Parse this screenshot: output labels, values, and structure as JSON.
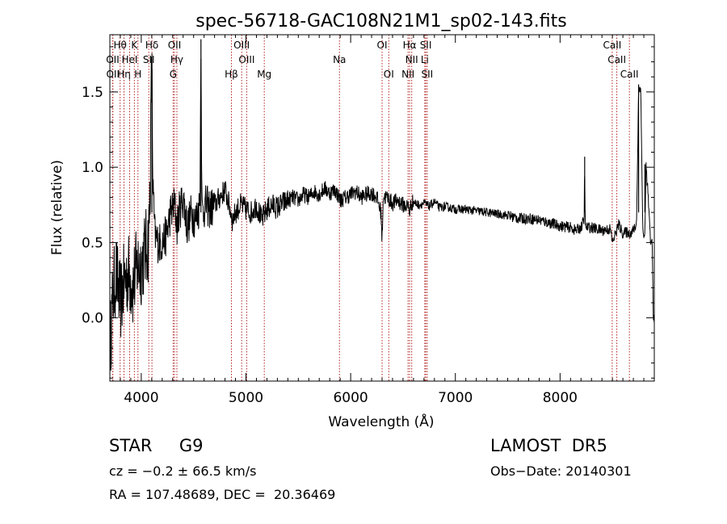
{
  "chart_data": {
    "type": "line",
    "title": "spec-56718-GAC108N21M1_sp02-143.fits",
    "xlabel": "Wavelength (Å)",
    "ylabel": "Flux (relative)",
    "xlim": [
      3700,
      8900
    ],
    "ylim": [
      -0.42,
      1.88
    ],
    "xticks": [
      4000,
      5000,
      6000,
      7000,
      8000
    ],
    "xtick_labels": [
      "4000",
      "5000",
      "6000",
      "7000",
      "8000"
    ],
    "yticks": [
      0.0,
      0.5,
      1.0,
      1.5
    ],
    "ytick_labels": [
      "0.0",
      "0.5",
      "1.0",
      "1.5"
    ],
    "series": [
      {
        "color": "#000000",
        "x": [
          3700,
          3730,
          3760,
          3800,
          3840,
          3880,
          3920,
          3960,
          4000,
          4040,
          4070,
          4085,
          4095,
          4102,
          4110,
          4130,
          4160,
          4200,
          4240,
          4280,
          4320,
          4340,
          4360,
          4400,
          4440,
          4480,
          4520,
          4560,
          4570,
          4580,
          4620,
          4660,
          4700,
          4750,
          4800,
          4850,
          4870,
          4900,
          4950,
          5000,
          5050,
          5100,
          5150,
          5200,
          5250,
          5300,
          5350,
          5400,
          5450,
          5500,
          5550,
          5600,
          5650,
          5700,
          5750,
          5800,
          5850,
          5890,
          5900,
          5950,
          6000,
          6050,
          6100,
          6150,
          6200,
          6250,
          6290,
          6300,
          6310,
          6350,
          6400,
          6450,
          6500,
          6550,
          6563,
          6580,
          6600,
          6650,
          6700,
          6750,
          6800,
          6850,
          6900,
          6950,
          7000,
          7100,
          7200,
          7300,
          7400,
          7500,
          7600,
          7700,
          7800,
          7900,
          8000,
          8100,
          8150,
          8200,
          8230,
          8235,
          8240,
          8300,
          8400,
          8480,
          8500,
          8540,
          8560,
          8600,
          8640,
          8660,
          8700,
          8730,
          8750,
          8770,
          8790,
          8800,
          8810,
          8820,
          8840,
          8860,
          8870,
          8880,
          8890,
          8900
        ],
        "y": [
          -0.2,
          0.15,
          0.3,
          0.1,
          0.25,
          0.3,
          0.2,
          0.35,
          0.35,
          0.45,
          0.5,
          0.9,
          1.5,
          1.65,
          0.9,
          0.55,
          0.5,
          0.5,
          0.55,
          0.7,
          0.75,
          0.6,
          0.7,
          0.8,
          0.6,
          0.7,
          0.65,
          0.75,
          1.85,
          0.7,
          0.75,
          0.72,
          0.75,
          0.8,
          0.85,
          0.72,
          0.65,
          0.7,
          0.75,
          0.72,
          0.7,
          0.75,
          0.65,
          0.72,
          0.75,
          0.73,
          0.76,
          0.78,
          0.8,
          0.78,
          0.82,
          0.8,
          0.84,
          0.82,
          0.86,
          0.83,
          0.85,
          0.8,
          0.78,
          0.8,
          0.82,
          0.84,
          0.8,
          0.82,
          0.83,
          0.8,
          0.7,
          0.5,
          0.8,
          0.8,
          0.76,
          0.78,
          0.75,
          0.74,
          0.7,
          0.76,
          0.77,
          0.75,
          0.76,
          0.74,
          0.77,
          0.73,
          0.74,
          0.73,
          0.72,
          0.72,
          0.71,
          0.7,
          0.69,
          0.68,
          0.66,
          0.66,
          0.65,
          0.63,
          0.61,
          0.6,
          0.58,
          0.6,
          0.65,
          1.07,
          0.6,
          0.6,
          0.58,
          0.59,
          0.5,
          0.58,
          0.62,
          0.56,
          0.57,
          0.56,
          0.58,
          0.62,
          1.5,
          1.55,
          0.6,
          0.52,
          0.55,
          1.02,
          0.82,
          0.55,
          0.48,
          0.52,
          0.02,
          0.0
        ]
      }
    ],
    "lines": [
      {
        "label": "Hθ",
        "x": 3798,
        "row": 0
      },
      {
        "label": "K",
        "x": 3934,
        "row": 0
      },
      {
        "label": "Hδ",
        "x": 4102,
        "row": 0
      },
      {
        "label": "OII",
        "x": 4317,
        "row": 0
      },
      {
        "label": "OIII",
        "x": 4959,
        "row": 0
      },
      {
        "label": "OI",
        "x": 6300,
        "row": 0
      },
      {
        "label": "Hα",
        "x": 6563,
        "row": 0
      },
      {
        "label": "SII",
        "x": 6717,
        "row": 0
      },
      {
        "label": "CaII",
        "x": 8498,
        "row": 0
      },
      {
        "label": "OII",
        "x": 3727,
        "row": 1
      },
      {
        "label": "HeI",
        "x": 3889,
        "row": 1
      },
      {
        "label": "SII",
        "x": 4072,
        "row": 1
      },
      {
        "label": "Hγ",
        "x": 4340,
        "row": 1
      },
      {
        "label": "OIII",
        "x": 5007,
        "row": 1
      },
      {
        "label": "Na",
        "x": 5893,
        "row": 1
      },
      {
        "label": "NII",
        "x": 6583,
        "row": 1
      },
      {
        "label": "Li",
        "x": 6708,
        "row": 1
      },
      {
        "label": "CaII",
        "x": 8542,
        "row": 1
      },
      {
        "label": "OII",
        "x": 3729,
        "row": 2
      },
      {
        "label": "Hη",
        "x": 3835,
        "row": 2
      },
      {
        "label": "H",
        "x": 3968,
        "row": 2
      },
      {
        "label": "G",
        "x": 4305,
        "row": 2
      },
      {
        "label": "Hβ",
        "x": 4861,
        "row": 2
      },
      {
        "label": "Mg",
        "x": 5175,
        "row": 2
      },
      {
        "label": "OI",
        "x": 6364,
        "row": 2
      },
      {
        "label": "NII",
        "x": 6548,
        "row": 2
      },
      {
        "label": "SII",
        "x": 6731,
        "row": 2
      },
      {
        "label": "CaII",
        "x": 8662,
        "row": 2
      }
    ]
  },
  "info": {
    "object_class": "STAR     G9",
    "survey": "LAMOST  DR5",
    "cz": "cz = −0.2 ± 66.5 km/s",
    "obs_date": "Obs−Date: 20140301",
    "radec": "RA = 107.48689, DEC =  20.36469"
  },
  "colors": {
    "spectrum": "#000000",
    "line_markers": "#b22222",
    "axes": "#000000"
  }
}
